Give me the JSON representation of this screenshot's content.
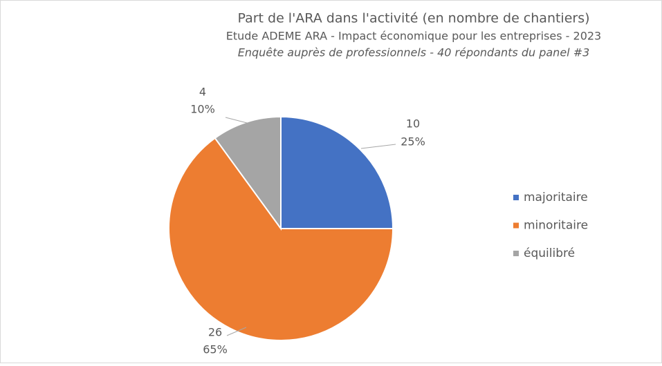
{
  "chart_data": {
    "type": "pie",
    "title": "Part de l'ARA dans l'activité (en nombre de chantiers)",
    "subtitle": "Etude ADEME ARA - Impact économique pour les entreprises - 2023",
    "note": "Enquête auprès de professionnels - 40 répondants du panel #3",
    "categories": [
      "majoritaire",
      "minoritaire",
      "équilibré"
    ],
    "values": [
      10,
      26,
      4
    ],
    "percentages": [
      25,
      65,
      10
    ],
    "percentage_labels": [
      "25%",
      "65%",
      "10%"
    ],
    "colors": [
      "#4472c4",
      "#ed7d31",
      "#a5a5a5"
    ],
    "legend": "right"
  }
}
